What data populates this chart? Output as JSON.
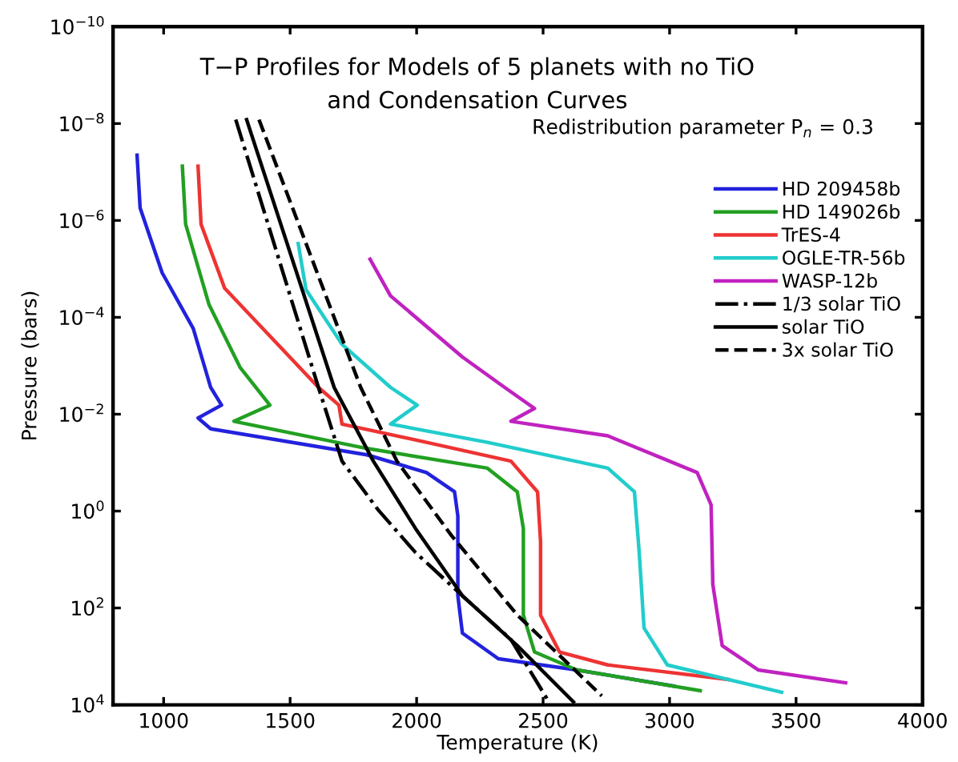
{
  "chart_data": {
    "type": "line",
    "title": "T−P Profiles for Models of 5 planets with no TiO\nand Condensation Curves",
    "xlabel": "Temperature (K)",
    "ylabel": "Pressure (bars)",
    "annotations": [
      "Redistribution parameter P$_{n}$ = 0.3"
    ],
    "log": "y",
    "xlim": [
      800,
      4000
    ],
    "xticks": [
      1000,
      1500,
      2000,
      2500,
      3000,
      3500,
      4000
    ],
    "ylim": [
      10000,
      1e-10
    ],
    "yticks": [
      {
        "value": 1e-10,
        "label": "10$^{−10}$"
      },
      {
        "value": 1e-08,
        "label": "10$^{−8}$"
      },
      {
        "value": 1e-06,
        "label": "10$^{−6}$"
      },
      {
        "value": 0.0001,
        "label": "10$^{−4}$"
      },
      {
        "value": 0.01,
        "label": "10$^{−2}$"
      },
      {
        "value": 1,
        "label": "10$^{0}$"
      },
      {
        "value": 100,
        "label": "10$^{2}$"
      },
      {
        "value": 10000,
        "label": "10$^{4}$"
      }
    ],
    "grid": false,
    "legend": "right",
    "marker": "none",
    "series": [
      {
        "name": "HD 209458b",
        "color": "#2222dd",
        "line_style": "solid",
        "x": [
          895,
          907,
          994,
          1117,
          1186,
          1229,
          1136,
          1186,
          1804,
          2039,
          2150,
          2163,
          2163,
          2181,
          2323,
          2633,
          3016
        ],
        "values": [
          4.5e-08,
          5.5e-07,
          1.2e-05,
          0.00017,
          0.0028,
          0.0065,
          0.012,
          0.02,
          0.069,
          0.16,
          0.4,
          1.26,
          56,
          330,
          1120,
          1900,
          4100
        ]
      },
      {
        "name": "HD 149026b",
        "color": "#22a022",
        "line_style": "solid",
        "x": [
          1074,
          1087,
          1179,
          1303,
          1420,
          1278,
          1804,
          2280,
          2398,
          2422,
          2422,
          2466,
          2633,
          3121
        ],
        "values": [
          7.6e-08,
          1.2e-06,
          5.4e-05,
          0.0011,
          0.0065,
          0.014,
          0.051,
          0.13,
          0.4,
          2.3,
          140,
          810,
          1900,
          5100
        ]
      },
      {
        "name": "TrES-4",
        "color": "#ee3333",
        "line_style": "solid",
        "x": [
          1136,
          1148,
          1241,
          1612,
          1693,
          1705,
          2039,
          2373,
          2478,
          2490,
          2490,
          2565,
          2756,
          3233
        ],
        "values": [
          7.6e-08,
          1.2e-06,
          2.5e-05,
          0.0028,
          0.0065,
          0.016,
          0.038,
          0.093,
          0.4,
          4.3,
          140,
          810,
          1500,
          3000
        ]
      },
      {
        "name": "OGLE-TR-56b",
        "color": "#22cccc",
        "line_style": "solid",
        "x": [
          1532,
          1563,
          1705,
          1897,
          2002,
          1897,
          2280,
          2756,
          2861,
          2880,
          2899,
          2991,
          3443
        ],
        "values": [
          3e-06,
          2.7e-05,
          0.00036,
          0.0028,
          0.0065,
          0.016,
          0.038,
          0.13,
          0.4,
          7.2,
          260,
          1500,
          5500
        ]
      },
      {
        "name": "WASP-12b",
        "color": "#c022c0",
        "line_style": "solid",
        "x": [
          1816,
          1897,
          2181,
          2348,
          2466,
          2373,
          2756,
          3109,
          3164,
          3171,
          3208,
          3350,
          3696
        ],
        "values": [
          6.3e-06,
          3.6e-05,
          0.00066,
          0.0028,
          0.0076,
          0.014,
          0.028,
          0.16,
          0.74,
          33,
          600,
          1900,
          3500
        ]
      },
      {
        "name": "1/3 solar TiO",
        "color": "#000000",
        "line_style": "dashdot",
        "x": [
          1285,
          1612,
          1705,
          1847,
          1996,
          2181,
          2373,
          2515
        ],
        "values": [
          8.3e-09,
          0.0028,
          0.093,
          0.93,
          7.2,
          56,
          450,
          7400
        ]
      },
      {
        "name": "solar TiO",
        "color": "#000000",
        "line_style": "solid",
        "x": [
          1328,
          1674,
          1829,
          1996,
          2181,
          2398,
          2620
        ],
        "values": [
          8.3e-09,
          0.0028,
          0.093,
          2.3,
          56,
          600,
          8700
        ]
      },
      {
        "name": "3x solar TiO",
        "color": "#000000",
        "line_style": "dashed",
        "x": [
          1377,
          1779,
          1922,
          2138,
          2398,
          2732
        ],
        "values": [
          8.3e-09,
          0.0028,
          0.093,
          3.2,
          140,
          6500
        ]
      }
    ]
  }
}
